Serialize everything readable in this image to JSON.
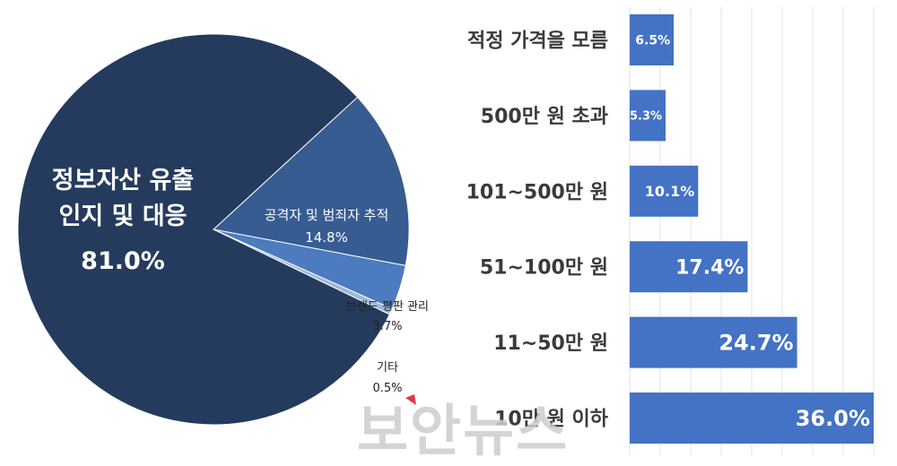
{
  "chart_data": [
    {
      "type": "pie",
      "slices": [
        {
          "label_lines": [
            "정보자산 유출",
            "인지 및 대응"
          ],
          "value": 81.0,
          "value_label": "81.0%",
          "color": "#243B5E"
        },
        {
          "label_lines": [
            "공격자 및 범죄자 추적"
          ],
          "value": 14.8,
          "value_label": "14.8%",
          "color": "#365C92"
        },
        {
          "label_lines": [
            "브랜드 평판 관리"
          ],
          "value": 3.7,
          "value_label": "3.7%",
          "color": "#4D7BBF"
        },
        {
          "label_lines": [
            "기타"
          ],
          "value": 0.5,
          "value_label": "0.5%",
          "color": "#9DB7DD"
        }
      ]
    },
    {
      "type": "bar",
      "orientation": "horizontal",
      "categories": [
        "적정 가격을 모름",
        "500만 원 초과",
        "101~500만 원",
        "51~100만 원",
        "11~50만 원",
        "10만 원 이하"
      ],
      "values": [
        6.5,
        5.3,
        10.1,
        17.4,
        24.7,
        36.0
      ],
      "value_labels": [
        "6.5%",
        "5.3%",
        "10.1%",
        "17.4%",
        "24.7%",
        "36.0%"
      ],
      "xlim": [
        0,
        36
      ],
      "grid": true,
      "bar_color": "#4472C4"
    }
  ],
  "watermark": "보안뉴스"
}
